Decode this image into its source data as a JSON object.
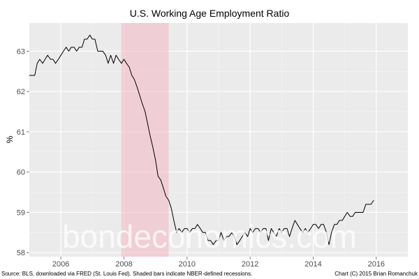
{
  "chart_data": {
    "type": "line",
    "title": "U.S. Working Age Employment Ratio",
    "xlabel": "",
    "ylabel": "%",
    "xlim": [
      2005.0,
      2017.0
    ],
    "ylim": [
      57.9,
      63.7
    ],
    "x_ticks": [
      2006,
      2008,
      2010,
      2012,
      2014,
      2016
    ],
    "y_ticks": [
      58,
      59,
      60,
      61,
      62,
      63
    ],
    "grid": true,
    "legend": "none",
    "recession_bands": [
      [
        2007.917,
        2009.417
      ]
    ],
    "series": [
      {
        "color": "#000000",
        "points": [
          [
            2005.0,
            62.4
          ],
          [
            2005.08,
            62.4
          ],
          [
            2005.17,
            62.4
          ],
          [
            2005.25,
            62.7
          ],
          [
            2005.33,
            62.8
          ],
          [
            2005.42,
            62.7
          ],
          [
            2005.5,
            62.8
          ],
          [
            2005.58,
            62.9
          ],
          [
            2005.67,
            62.8
          ],
          [
            2005.75,
            62.8
          ],
          [
            2005.83,
            62.7
          ],
          [
            2005.92,
            62.8
          ],
          [
            2006.0,
            62.9
          ],
          [
            2006.08,
            63.0
          ],
          [
            2006.17,
            63.1
          ],
          [
            2006.25,
            63.0
          ],
          [
            2006.33,
            63.1
          ],
          [
            2006.42,
            63.1
          ],
          [
            2006.5,
            63.0
          ],
          [
            2006.58,
            63.1
          ],
          [
            2006.67,
            63.1
          ],
          [
            2006.75,
            63.3
          ],
          [
            2006.83,
            63.3
          ],
          [
            2006.92,
            63.4
          ],
          [
            2007.0,
            63.3
          ],
          [
            2007.08,
            63.3
          ],
          [
            2007.17,
            63.0
          ],
          [
            2007.25,
            63.0
          ],
          [
            2007.33,
            63.0
          ],
          [
            2007.42,
            62.9
          ],
          [
            2007.5,
            62.7
          ],
          [
            2007.58,
            62.9
          ],
          [
            2007.67,
            62.7
          ],
          [
            2007.75,
            62.9
          ],
          [
            2007.83,
            62.8
          ],
          [
            2007.92,
            62.7
          ],
          [
            2008.0,
            62.8
          ],
          [
            2008.08,
            62.7
          ],
          [
            2008.17,
            62.6
          ],
          [
            2008.25,
            62.4
          ],
          [
            2008.33,
            62.3
          ],
          [
            2008.42,
            62.1
          ],
          [
            2008.5,
            61.9
          ],
          [
            2008.58,
            61.7
          ],
          [
            2008.67,
            61.5
          ],
          [
            2008.75,
            61.2
          ],
          [
            2008.83,
            60.9
          ],
          [
            2008.92,
            60.6
          ],
          [
            2009.0,
            60.3
          ],
          [
            2009.08,
            59.9
          ],
          [
            2009.17,
            59.8
          ],
          [
            2009.25,
            59.6
          ],
          [
            2009.33,
            59.4
          ],
          [
            2009.42,
            59.3
          ],
          [
            2009.5,
            59.1
          ],
          [
            2009.58,
            58.8
          ],
          [
            2009.67,
            58.5
          ],
          [
            2009.75,
            58.6
          ],
          [
            2009.83,
            58.5
          ],
          [
            2009.92,
            58.6
          ],
          [
            2010.0,
            58.6
          ],
          [
            2010.08,
            58.5
          ],
          [
            2010.17,
            58.6
          ],
          [
            2010.25,
            58.6
          ],
          [
            2010.33,
            58.7
          ],
          [
            2010.42,
            58.6
          ],
          [
            2010.5,
            58.5
          ],
          [
            2010.58,
            58.5
          ],
          [
            2010.67,
            58.3
          ],
          [
            2010.75,
            58.3
          ],
          [
            2010.83,
            58.2
          ],
          [
            2010.92,
            58.3
          ],
          [
            2011.0,
            58.3
          ],
          [
            2011.08,
            58.5
          ],
          [
            2011.17,
            58.3
          ],
          [
            2011.25,
            58.4
          ],
          [
            2011.33,
            58.4
          ],
          [
            2011.42,
            58.5
          ],
          [
            2011.5,
            58.4
          ],
          [
            2011.58,
            58.2
          ],
          [
            2011.67,
            58.3
          ],
          [
            2011.75,
            58.4
          ],
          [
            2011.83,
            58.5
          ],
          [
            2011.92,
            58.4
          ],
          [
            2012.0,
            58.6
          ],
          [
            2012.08,
            58.5
          ],
          [
            2012.17,
            58.6
          ],
          [
            2012.25,
            58.6
          ],
          [
            2012.33,
            58.5
          ],
          [
            2012.42,
            58.6
          ],
          [
            2012.5,
            58.6
          ],
          [
            2012.58,
            58.3
          ],
          [
            2012.67,
            58.6
          ],
          [
            2012.75,
            58.5
          ],
          [
            2012.83,
            58.4
          ],
          [
            2012.92,
            58.6
          ],
          [
            2013.0,
            58.5
          ],
          [
            2013.08,
            58.6
          ],
          [
            2013.17,
            58.6
          ],
          [
            2013.25,
            58.4
          ],
          [
            2013.33,
            58.6
          ],
          [
            2013.42,
            58.8
          ],
          [
            2013.5,
            58.7
          ],
          [
            2013.58,
            58.6
          ],
          [
            2013.67,
            58.5
          ],
          [
            2013.75,
            58.6
          ],
          [
            2013.83,
            58.5
          ],
          [
            2013.92,
            58.6
          ],
          [
            2014.0,
            58.7
          ],
          [
            2014.08,
            58.7
          ],
          [
            2014.17,
            58.6
          ],
          [
            2014.25,
            58.7
          ],
          [
            2014.33,
            58.7
          ],
          [
            2014.42,
            58.5
          ],
          [
            2014.5,
            58.2
          ],
          [
            2014.58,
            58.5
          ],
          [
            2014.67,
            58.7
          ],
          [
            2014.75,
            58.7
          ],
          [
            2014.83,
            58.8
          ],
          [
            2014.92,
            58.8
          ],
          [
            2015.0,
            58.9
          ],
          [
            2015.08,
            59.0
          ],
          [
            2015.17,
            58.9
          ],
          [
            2015.25,
            58.9
          ],
          [
            2015.33,
            59.0
          ],
          [
            2015.42,
            59.0
          ],
          [
            2015.5,
            59.0
          ],
          [
            2015.58,
            59.0
          ],
          [
            2015.67,
            59.2
          ],
          [
            2015.75,
            59.2
          ],
          [
            2015.83,
            59.2
          ],
          [
            2015.92,
            59.3
          ]
        ]
      }
    ]
  },
  "footer": {
    "source": "Source: BLS, downloaded via FRED (St. Louis Fed). Shaded bars indicate NBER-defined recessions.",
    "credit": "Chart (C) 2015 Brian Romanchuk"
  },
  "watermark": "bondeconomics.com",
  "colors": {
    "panel": "#ebebeb",
    "grid_major": "#ffffff",
    "grid_minor": "#f5f5f5",
    "recession": "#f4b6c2",
    "line": "#000000"
  }
}
